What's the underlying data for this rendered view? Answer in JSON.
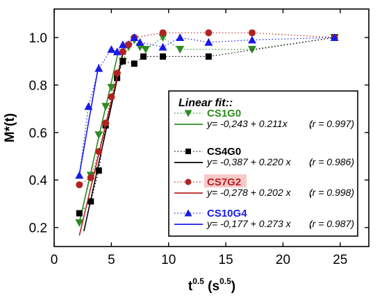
{
  "chart_data": {
    "type": "scatter",
    "xlabel_base": "t",
    "xlabel_sup": "0.5",
    "xlabel_unit_open": " (s",
    "xlabel_unit_sup": "0.5",
    "xlabel_unit_close": ")",
    "ylabel": "M*(t)",
    "xlim": [
      0,
      27.5
    ],
    "ylim": [
      0.12,
      1.12
    ],
    "xticks": [
      0,
      5,
      10,
      15,
      20,
      25
    ],
    "yticks": [
      0.2,
      0.4,
      0.6,
      0.8,
      1.0
    ],
    "ytick_labels": [
      "0.2",
      "0.4",
      "0.6",
      "0.8",
      "1.0"
    ],
    "legend_title": "Linear fit::",
    "legend_position": "center-right",
    "series": [
      {
        "name": "CS1G0",
        "marker": "triangle-down",
        "color": "#2e8b22",
        "label_bg": "",
        "x": [
          2.2,
          3.2,
          3.9,
          4.5,
          5.0,
          5.5,
          6.0,
          6.5,
          7.0,
          7.5,
          8.0,
          9.5,
          11.0,
          17.3,
          24.5
        ],
        "y": [
          0.22,
          0.42,
          0.59,
          0.71,
          0.79,
          0.84,
          0.9,
          0.96,
          0.99,
          0.96,
          0.95,
          1.0,
          0.95,
          0.95,
          1.0
        ],
        "fit_equation": "y= -0,243 + 0.211x",
        "fit_r": "(r = 0.997)",
        "fit_intercept": -0.243,
        "fit_slope": 0.211,
        "fit_range": [
          2.2,
          5.6
        ]
      },
      {
        "name": "CS4G0",
        "marker": "square",
        "color": "#000000",
        "label_bg": "",
        "x": [
          2.2,
          3.2,
          3.9,
          4.5,
          5.5,
          6.0,
          7.0,
          7.8,
          9.5,
          13.5,
          24.5
        ],
        "y": [
          0.26,
          0.31,
          0.44,
          0.63,
          0.83,
          0.9,
          0.89,
          0.92,
          0.92,
          0.92,
          1.0
        ],
        "fit_equation": "y= -0,387 + 0.220 x",
        "fit_r": "(r = 0.986)",
        "fit_intercept": -0.387,
        "fit_slope": 0.22,
        "fit_range": [
          2.6,
          6.1
        ]
      },
      {
        "name": "CS7G2",
        "marker": "circle",
        "color": "#b22222",
        "label_bg": "#f6c9c9",
        "x": [
          2.2,
          3.2,
          3.9,
          4.5,
          5.0,
          5.5,
          6.0,
          6.5,
          7.0,
          9.5,
          13.5,
          17.3,
          24.5
        ],
        "y": [
          0.38,
          0.41,
          0.52,
          0.64,
          0.75,
          0.85,
          0.94,
          0.97,
          1.0,
          1.02,
          1.02,
          1.02,
          1.0
        ],
        "fit_equation": "y= -0,278 + 0.202 x",
        "fit_r": "(r = 0.998)",
        "fit_intercept": -0.278,
        "fit_slope": 0.202,
        "fit_range": [
          2.2,
          5.6
        ]
      },
      {
        "name": "CS10G4",
        "marker": "triangle-up",
        "color": "#1a1ae6",
        "label_bg": "",
        "x": [
          2.2,
          3.0,
          3.9,
          5.0,
          5.5,
          6.0,
          7.0,
          7.5,
          9.5,
          11.0,
          13.5,
          17.3,
          24.5
        ],
        "y": [
          0.42,
          0.71,
          0.87,
          0.95,
          0.94,
          0.97,
          1.0,
          0.98,
          0.96,
          1.0,
          0.98,
          0.99,
          1.0
        ],
        "fit_equation": "y= -0,177 + 0.273 x",
        "fit_r": "(r = 0.987)",
        "fit_intercept": -0.177,
        "fit_slope": 0.273,
        "fit_range": [
          2.2,
          3.9
        ]
      }
    ]
  }
}
